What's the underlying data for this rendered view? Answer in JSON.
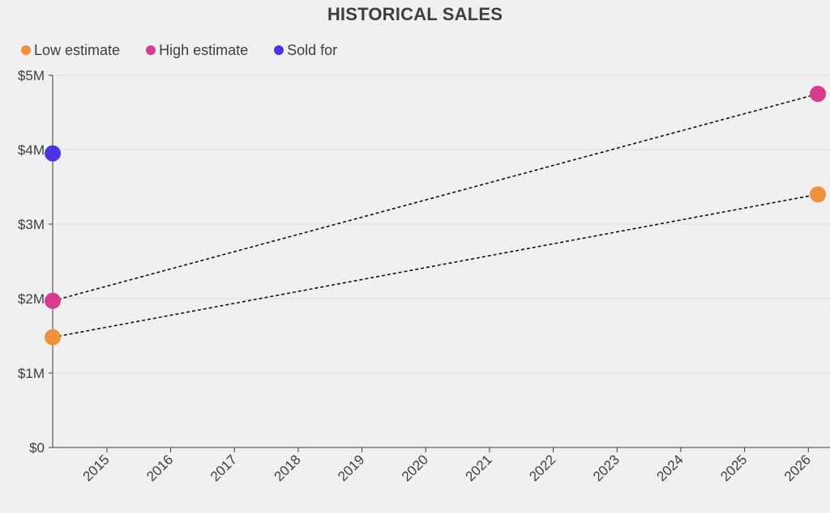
{
  "chart_data": {
    "type": "scatter",
    "title": "HISTORICAL SALES",
    "xlabel": "",
    "ylabel": "",
    "x_ticks": [
      "2015",
      "2016",
      "2017",
      "2018",
      "2019",
      "2020",
      "2021",
      "2022",
      "2023",
      "2024",
      "2025",
      "2026"
    ],
    "y_ticks": [
      "$0",
      "$1M",
      "$2M",
      "$3M",
      "$4M",
      "$5M"
    ],
    "xlim": [
      2014.15,
      2026.2
    ],
    "ylim": [
      0,
      5000000
    ],
    "grid": true,
    "series": [
      {
        "name": "Low estimate",
        "color": "#ef913a",
        "points": [
          {
            "x": 2014.15,
            "y": 1480000
          },
          {
            "x": 2026.15,
            "y": 3400000
          }
        ],
        "trend": "dashed"
      },
      {
        "name": "High estimate",
        "color": "#d63d91",
        "points": [
          {
            "x": 2014.15,
            "y": 1970000
          },
          {
            "x": 2026.15,
            "y": 4750000
          }
        ],
        "trend": "dashed"
      },
      {
        "name": "Sold for",
        "color": "#4a35e2",
        "points": [
          {
            "x": 2014.15,
            "y": 3950000
          }
        ],
        "trend": "none"
      }
    ]
  }
}
